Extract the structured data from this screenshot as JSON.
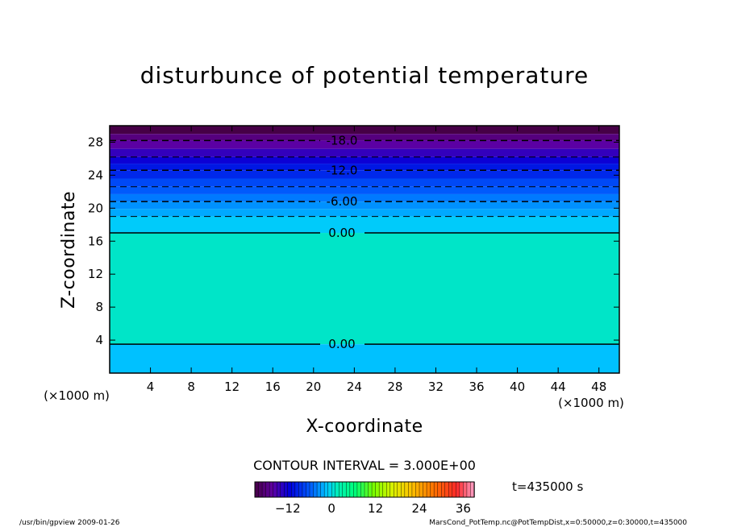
{
  "chart_data": {
    "type": "heatmap",
    "title": "disturbunce of potential temperature",
    "xlabel": "X-coordinate",
    "ylabel": "Z-coordinate",
    "x_unit_left": "(×1000 m)",
    "x_unit_right": "(×1000 m)",
    "xlim": [
      0,
      50
    ],
    "ylim": [
      0,
      30
    ],
    "xticks": [
      4,
      8,
      12,
      16,
      20,
      24,
      28,
      32,
      36,
      40,
      44,
      48
    ],
    "xtick_labels": [
      "4",
      "8",
      "12",
      "16",
      "20",
      "24",
      "28",
      "32",
      "36",
      "40",
      "44",
      "48"
    ],
    "yticks": [
      4,
      8,
      12,
      16,
      20,
      24,
      28
    ],
    "ytick_labels": [
      "4",
      "8",
      "12",
      "16",
      "20",
      "24",
      "28"
    ],
    "contour_levels": [
      {
        "z": 28.2,
        "label": "-18.0",
        "style": "dashed"
      },
      {
        "z": 26.2,
        "label": "",
        "style": "dashed"
      },
      {
        "z": 24.6,
        "label": "-12.0",
        "style": "dashed"
      },
      {
        "z": 22.6,
        "label": "",
        "style": "dashed"
      },
      {
        "z": 20.8,
        "label": "-6.00",
        "style": "dashed"
      },
      {
        "z": 19.0,
        "label": "",
        "style": "dashed"
      },
      {
        "z": 17.0,
        "label": "0.00",
        "style": "solid"
      }
    ],
    "lower_contour": {
      "z": 3.5,
      "label": "0.00",
      "style": "solid"
    },
    "fill_bands": [
      {
        "z0": 29.0,
        "z1": 30.0,
        "value": -21
      },
      {
        "z0": 28.2,
        "z1": 29.0,
        "value": -18
      },
      {
        "z0": 27.2,
        "z1": 28.2,
        "value": -16
      },
      {
        "z0": 26.2,
        "z1": 27.2,
        "value": -14
      },
      {
        "z0": 25.4,
        "z1": 26.2,
        "value": -12
      },
      {
        "z0": 24.6,
        "z1": 25.4,
        "value": -10
      },
      {
        "z0": 23.6,
        "z1": 24.6,
        "value": -9
      },
      {
        "z0": 22.6,
        "z1": 23.6,
        "value": -7
      },
      {
        "z0": 21.7,
        "z1": 22.6,
        "value": -6
      },
      {
        "z0": 20.8,
        "z1": 21.7,
        "value": -4.5
      },
      {
        "z0": 19.9,
        "z1": 20.8,
        "value": -3.5
      },
      {
        "z0": 19.0,
        "z1": 19.9,
        "value": -2.5
      },
      {
        "z0": 17.0,
        "z1": 19.0,
        "value": -1
      },
      {
        "z0": 3.5,
        "z1": 17.0,
        "value": 1
      },
      {
        "z0": 0.0,
        "z1": 3.5,
        "value": -1.5
      }
    ],
    "colorbar": {
      "ticks": [
        -12,
        0,
        12,
        24,
        36
      ],
      "tick_labels": [
        "−12",
        "0",
        "12",
        "24",
        "36"
      ],
      "min": -21,
      "max": 39
    },
    "contour_interval": "CONTOUR INTERVAL = 3.000E+00",
    "time_label": "t=435000 s"
  },
  "footer": {
    "left": "/usr/bin/gpview  2009-01-26",
    "right": "MarsCond_PotTemp.nc@PotTempDist,x=0:50000,z=0:30000,t=435000"
  },
  "colors": {
    "near_zero": "#00f2a8",
    "low_layer": "#17d8f0",
    "top": "#5b0a9a"
  }
}
